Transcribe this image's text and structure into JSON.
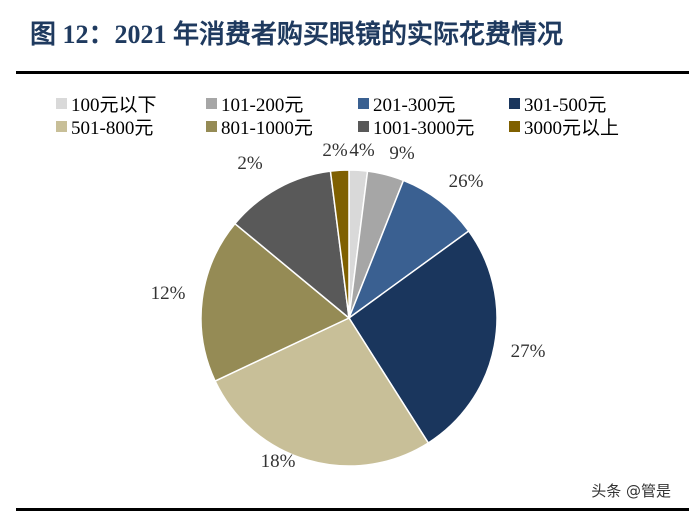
{
  "chart_data": {
    "type": "pie",
    "title": "图 12：2021 年消费者购买眼镜的实际花费情况",
    "start": "top",
    "direction": "clockwise",
    "legend_position": "top",
    "slices": [
      {
        "label": "100元以下",
        "value": 2,
        "data_label": "2%",
        "color": "#d9d9d9"
      },
      {
        "label": "101-200元",
        "value": 4,
        "data_label": "4%",
        "color": "#a6a6a6"
      },
      {
        "label": "201-300元",
        "value": 9,
        "data_label": "9%",
        "color": "#3a6091"
      },
      {
        "label": "301-500元",
        "value": 26,
        "data_label": "26%",
        "color": "#1a365d"
      },
      {
        "label": "501-800元",
        "value": 27,
        "data_label": "27%",
        "color": "#c8bf98"
      },
      {
        "label": "801-1000元",
        "value": 18,
        "data_label": "18%",
        "color": "#958b55"
      },
      {
        "label": "1001-3000元",
        "value": 12,
        "data_label": "12%",
        "color": "#595959"
      },
      {
        "label": "3000元以上",
        "value": 2,
        "data_label": "2%",
        "color": "#7f6000"
      }
    ]
  },
  "watermark": "头条 @管是"
}
